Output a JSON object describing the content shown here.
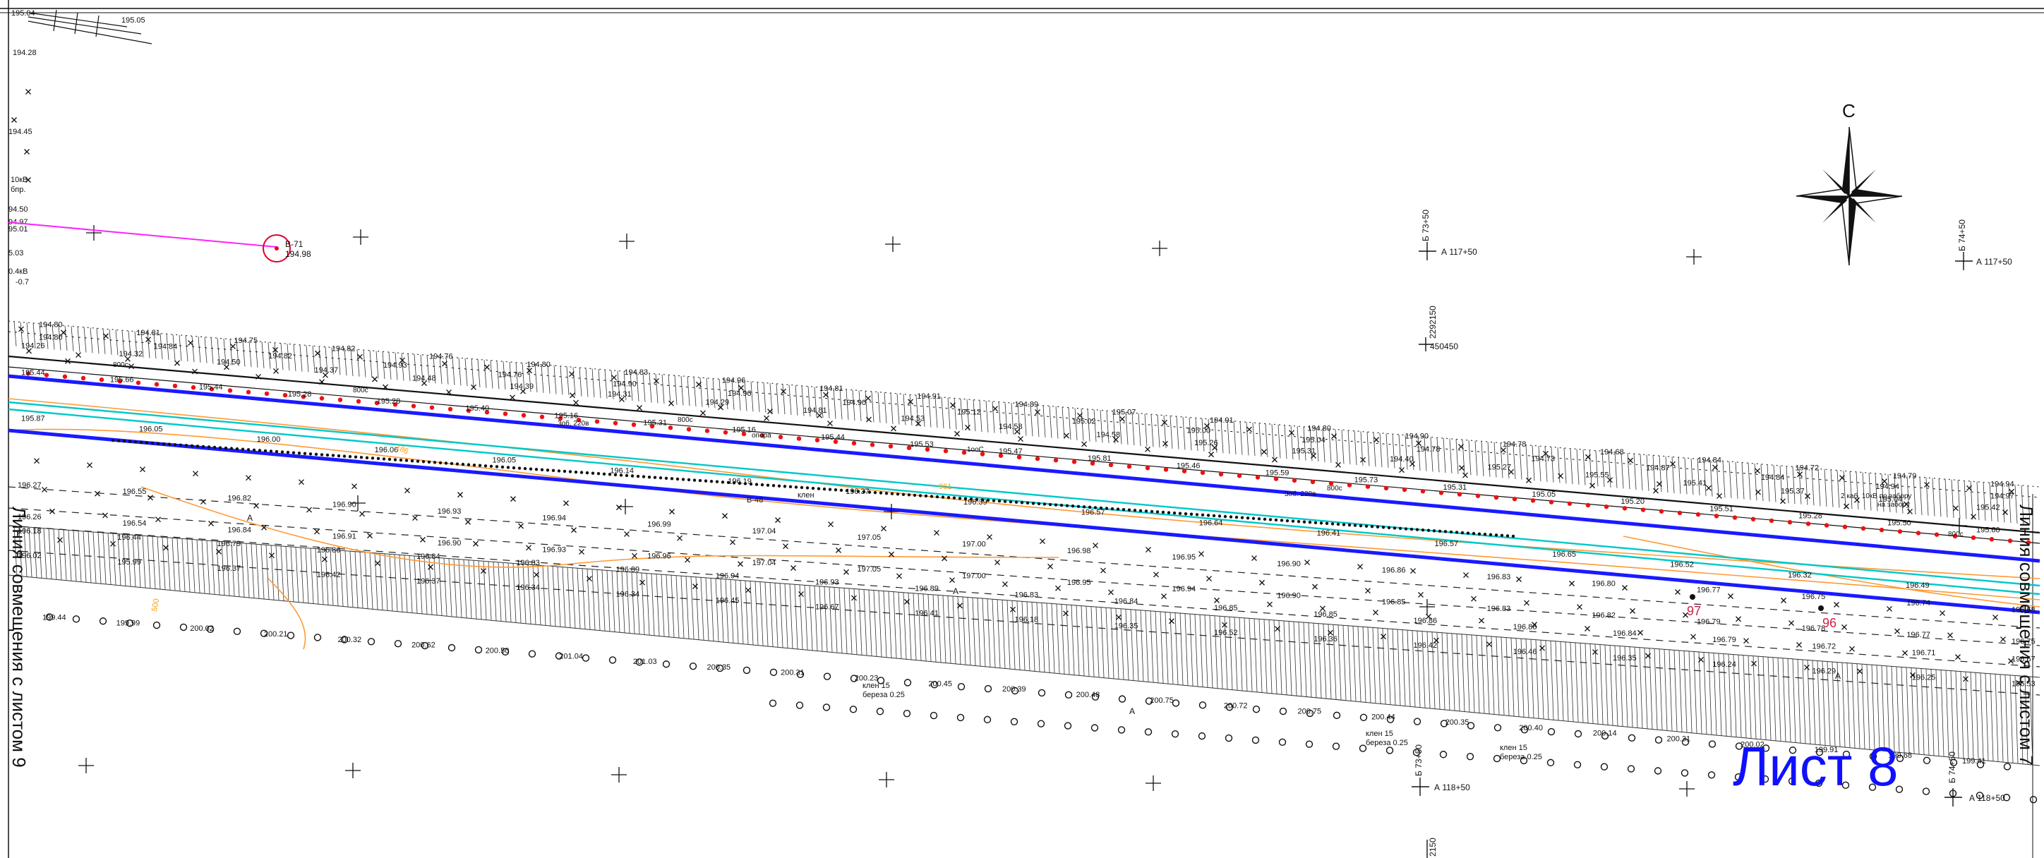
{
  "sheet_title": "Лист 8",
  "north_label": "С",
  "side_labels": {
    "left": "Линия совмещения с листом 9",
    "right": "Линия совмещения с листом 7"
  },
  "well": {
    "name": "В-71",
    "elevation": "194.98"
  },
  "stations": {
    "pk_73_top": "Б 73+50",
    "a117_left": "А 117+50",
    "pk_74_top": "Б 74+50",
    "a117_right": "А 117+50",
    "grid_y": "2292150",
    "grid_x": "450450",
    "pk_73_bottom": "Б 73+50",
    "a118_left": "А 118+50",
    "pk_74_bottom": "Б 74+50",
    "a118_right": "А 118+50",
    "grid_bottom": "2150"
  },
  "left_margin_notes": [
    "194.28",
    "194.45",
    "10кВ",
    "бпр.",
    "94.50",
    "94.97",
    "95.01",
    "5.03",
    "0.4кВ",
    "-0.7",
    "195.04",
    "195.05"
  ],
  "top_row": [
    "194.80",
    "194.81",
    "194.75",
    "194.82",
    "194.76",
    "194.80",
    "194.83",
    "194.96",
    "194.81",
    "194.91",
    "194.89",
    "195.07",
    "194.91",
    "194.80",
    "194.90",
    "194.78",
    "194.68",
    "194.84",
    "194.72",
    "194.79",
    "194.94"
  ],
  "second_row": [
    "194.80",
    "194.84",
    "194.82",
    "194.93",
    "194.76",
    "194.90",
    "194.96",
    "194.90",
    "195.12",
    "195.02",
    "195.00",
    "195.04",
    "194.78",
    "194.73",
    "194.87",
    "194.84",
    "194.94",
    "194.97"
  ],
  "road_top_row": [
    "194.26",
    "194.32",
    "194.50",
    "194.37",
    "194.48",
    "194.39",
    "194.31",
    "194.29",
    "194.81",
    "194.53",
    "194.58",
    "194.58",
    "195.26",
    "195.31",
    "194.40",
    "195.27",
    "195.55",
    "195.41",
    "195.37",
    "195.04",
    "195.42"
  ],
  "road_mid_row": [
    "195.44",
    "195.66",
    "195.44",
    "195.28",
    "195.28",
    "195.40",
    "195.16",
    "195.31",
    "195.16",
    "195.44",
    "195.53",
    "195.47",
    "195.81",
    "195.46",
    "195.59",
    "195.73",
    "195.31",
    "195.05",
    "195.20",
    "195.51",
    "195.28",
    "195.50",
    "195.60"
  ],
  "road_bottom_row": [
    "195.87",
    "196.05",
    "196.00",
    "196.06",
    "196.05",
    "196.14",
    "196.19",
    "196.37",
    "196.39",
    "196.57",
    "196.64",
    "196.41",
    "196.57",
    "196.65",
    "196.52",
    "196.32",
    "196.49"
  ],
  "field_row_1": [
    "196.27",
    "196.55",
    "196.82",
    "196.90",
    "196.93",
    "196.94",
    "196.99",
    "197.04",
    "197.05",
    "197.00",
    "196.98",
    "196.95",
    "196.90",
    "196.86",
    "196.83",
    "196.80",
    "196.77",
    "196.75",
    "196.74",
    "196.68"
  ],
  "field_row_2": [
    "196.26",
    "196.54",
    "196.84",
    "196.91",
    "196.90",
    "196.93",
    "196.96",
    "197.04",
    "197.05",
    "197.00",
    "196.95",
    "196.94",
    "196.90",
    "196.85",
    "196.83",
    "196.82",
    "196.79",
    "196.78",
    "196.77",
    "196.75"
  ],
  "field_row_3": [
    "196.18",
    "196.44",
    "196.79",
    "196.86",
    "196.84",
    "196.83",
    "196.89",
    "196.94",
    "196.93",
    "196.89",
    "196.83",
    "196.84",
    "196.85",
    "196.85",
    "196.86",
    "196.86",
    "196.84",
    "196.79",
    "196.72",
    "196.71",
    "196.67"
  ],
  "field_row_4": [
    "196.02",
    "195.99",
    "196.37",
    "196.42",
    "196.37",
    "196.34",
    "196.34",
    "196.45",
    "196.67",
    "196.41",
    "196.18",
    "196.35",
    "196.52",
    "196.36",
    "196.42",
    "196.46",
    "196.35",
    "196.24",
    "196.29",
    "196.25",
    "196.53"
  ],
  "slope_row": [
    "199.44",
    "199.99",
    "200.02",
    "200.21",
    "200.32",
    "200.62",
    "200.50",
    "201.04",
    "201.03",
    "200.35",
    "200.31",
    "200.23",
    "200.45",
    "200.39",
    "200.48",
    "200.75",
    "200.72",
    "200.75",
    "200.44",
    "200.35",
    "200.40",
    "200.14",
    "200.31",
    "200.02",
    "199.91",
    "199.68",
    "199.41"
  ],
  "utility_notes": [
    "800c",
    "800c",
    "800c",
    "1ooC",
    "3об. 220в",
    "3об. 220в",
    "2 каб. 10кВ по забору",
    "на забору",
    "опора",
    "800c",
    "800c"
  ],
  "vegetation_notes": [
    "клен 15",
    "береза 0.25",
    "клен 15",
    "береза 0.25",
    "клен 15",
    "береза 0.25"
  ],
  "misc_labels": [
    "В-48",
    "клен",
    "961",
    "186",
    "500",
    "97",
    "96",
    "А",
    "А",
    "А",
    "А"
  ],
  "colors": {
    "road_edge": "#1a1aff",
    "water_line": "#00c8c8",
    "contour": "#ff9933",
    "fence_points": "#ee1111",
    "well_line": "#ff22ff",
    "well_circle": "#dd0033",
    "picket_label": "#cc2244",
    "sheet_title": "#1010ff",
    "drawing": "#111111"
  }
}
